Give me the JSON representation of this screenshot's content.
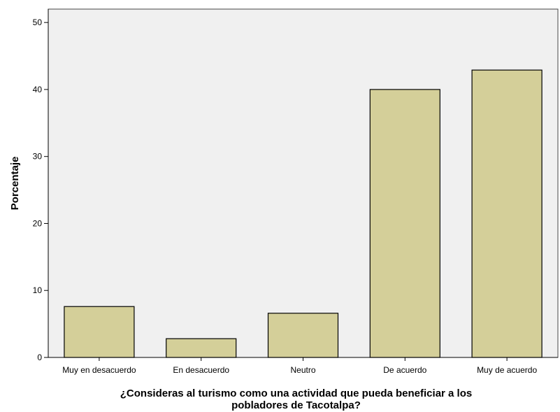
{
  "chart_data": {
    "type": "bar",
    "title": "",
    "categories": [
      "Muy en desacuerdo",
      "En desacuerdo",
      "Neutro",
      "De acuerdo",
      "Muy de acuerdo"
    ],
    "values": [
      7.6,
      2.8,
      6.6,
      40.0,
      42.9
    ],
    "xlabel_lines": [
      "¿Consideras al turismo como una actividad que pueda beneficiar a los",
      "pobladores de Tacotalpa?"
    ],
    "ylabel": "Porcentaje",
    "ylim": [
      0,
      52
    ],
    "yticks": [
      0,
      10,
      20,
      30,
      40,
      50
    ],
    "grid": false,
    "legend": "none",
    "colors": {
      "plot_background": "#f0f0f0",
      "bar_fill": "#d4cf99",
      "bar_stroke": "#000000"
    }
  }
}
